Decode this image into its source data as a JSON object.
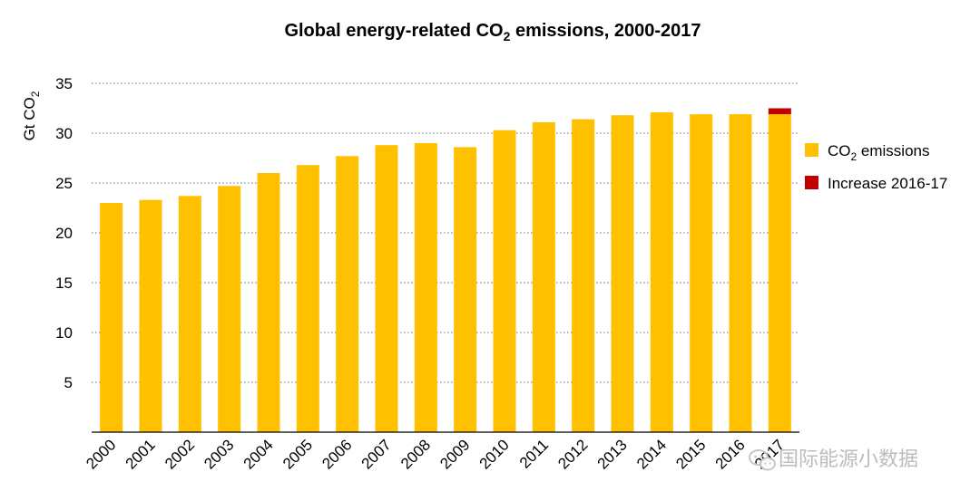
{
  "chart_data": {
    "type": "bar",
    "title_main": "Global energy-related CO",
    "title_sub": "2",
    "title_tail": " emissions, 2000-2017",
    "ylabel_main": "Gt CO",
    "ylabel_sub": "2",
    "ylim": [
      0,
      35
    ],
    "yticks": [
      5,
      10,
      15,
      20,
      25,
      30,
      35
    ],
    "grid": true,
    "legend_position": "right",
    "categories": [
      "2000",
      "2001",
      "2002",
      "2003",
      "2004",
      "2005",
      "2006",
      "2007",
      "2008",
      "2009",
      "2010",
      "2011",
      "2012",
      "2013",
      "2014",
      "2015",
      "2016",
      "2017"
    ],
    "series": [
      {
        "name_main": "CO",
        "name_sub": "2",
        "name_tail": " emissions",
        "color": "#FFC000",
        "values": [
          23.0,
          23.3,
          23.7,
          24.7,
          26.0,
          26.8,
          27.7,
          28.8,
          29.0,
          28.6,
          30.3,
          31.1,
          31.4,
          31.8,
          32.1,
          31.9,
          31.9,
          31.9
        ]
      },
      {
        "name": "Increase 2016-17",
        "color": "#C00000",
        "values": [
          0,
          0,
          0,
          0,
          0,
          0,
          0,
          0,
          0,
          0,
          0,
          0,
          0,
          0,
          0,
          0,
          0,
          0.6
        ]
      }
    ]
  },
  "watermark": {
    "text": "国际能源小数据",
    "icon": "wechat-icon"
  }
}
